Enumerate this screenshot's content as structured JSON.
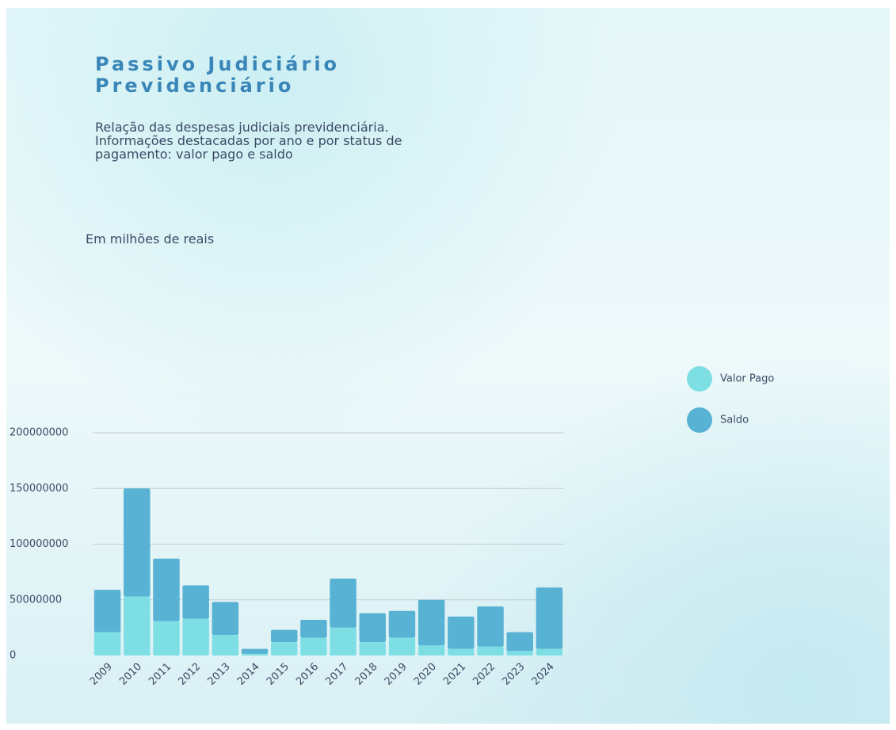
{
  "chart_data": {
    "type": "bar",
    "stacked": true,
    "title": "Passivo Judiciário Previdenciário",
    "subtitle": "Relação das despesas judiciais previdenciária. Informações destacadas por ano e por status de pagamento: valor pago e saldo",
    "y_label": "Em milhões de reais",
    "categories": [
      "2009",
      "2010",
      "2011",
      "2012",
      "2013",
      "2014",
      "2015",
      "2016",
      "2017",
      "2018",
      "2019",
      "2020",
      "2021",
      "2022",
      "2023",
      "2024"
    ],
    "series": [
      {
        "name": "Valor Pago",
        "color": "#7ddfe4",
        "values": [
          21000000,
          53000000,
          31000000,
          33000000,
          18500000,
          1500000,
          12000000,
          16000000,
          25000000,
          12000000,
          16000000,
          9000000,
          6000000,
          8000000,
          4000000,
          6000000
        ]
      },
      {
        "name": "Saldo",
        "color": "#58b2d4",
        "values": [
          38000000,
          97000000,
          56000000,
          30000000,
          29500000,
          4500000,
          11000000,
          16000000,
          44000000,
          26000000,
          24000000,
          41000000,
          29000000,
          36000000,
          17000000,
          55000000
        ]
      }
    ],
    "ylim": [
      0,
      200000000
    ],
    "yticks": [
      0,
      50000000,
      100000000,
      150000000,
      200000000
    ],
    "grid": true,
    "legend": "right"
  }
}
